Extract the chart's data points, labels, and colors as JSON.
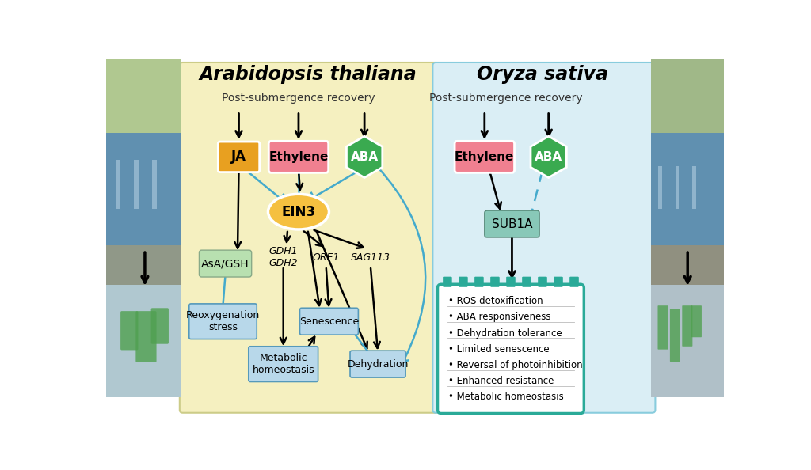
{
  "title_left": "Arabidopsis thaliana",
  "title_right": "Oryza sativa",
  "bg_left": "#f5f0c0",
  "bg_right": "#daeef5",
  "subtitle_left": "Post-submergence recovery",
  "subtitle_right": "Post-submergence recovery",
  "ja_color": "#e8a020",
  "ethylene_color": "#f08090",
  "aba_color": "#3aaa50",
  "ein3_color": "#f5c040",
  "asa_color": "#b8e0b0",
  "sub1a_color": "#88c8b8",
  "blue_box_face": "#b8d8ea",
  "blue_box_edge": "#5599bb",
  "teal": "#2aaa98",
  "arrow_blue": "#44aacc",
  "notebook_items": [
    "• ROS detoxification",
    "• ABA responsiveness",
    "• Dehydration tolerance",
    "• Limited senescence",
    "• Reversal of photoinhibition",
    "• Enhanced resistance",
    "• Metabolic homeostasis"
  ]
}
